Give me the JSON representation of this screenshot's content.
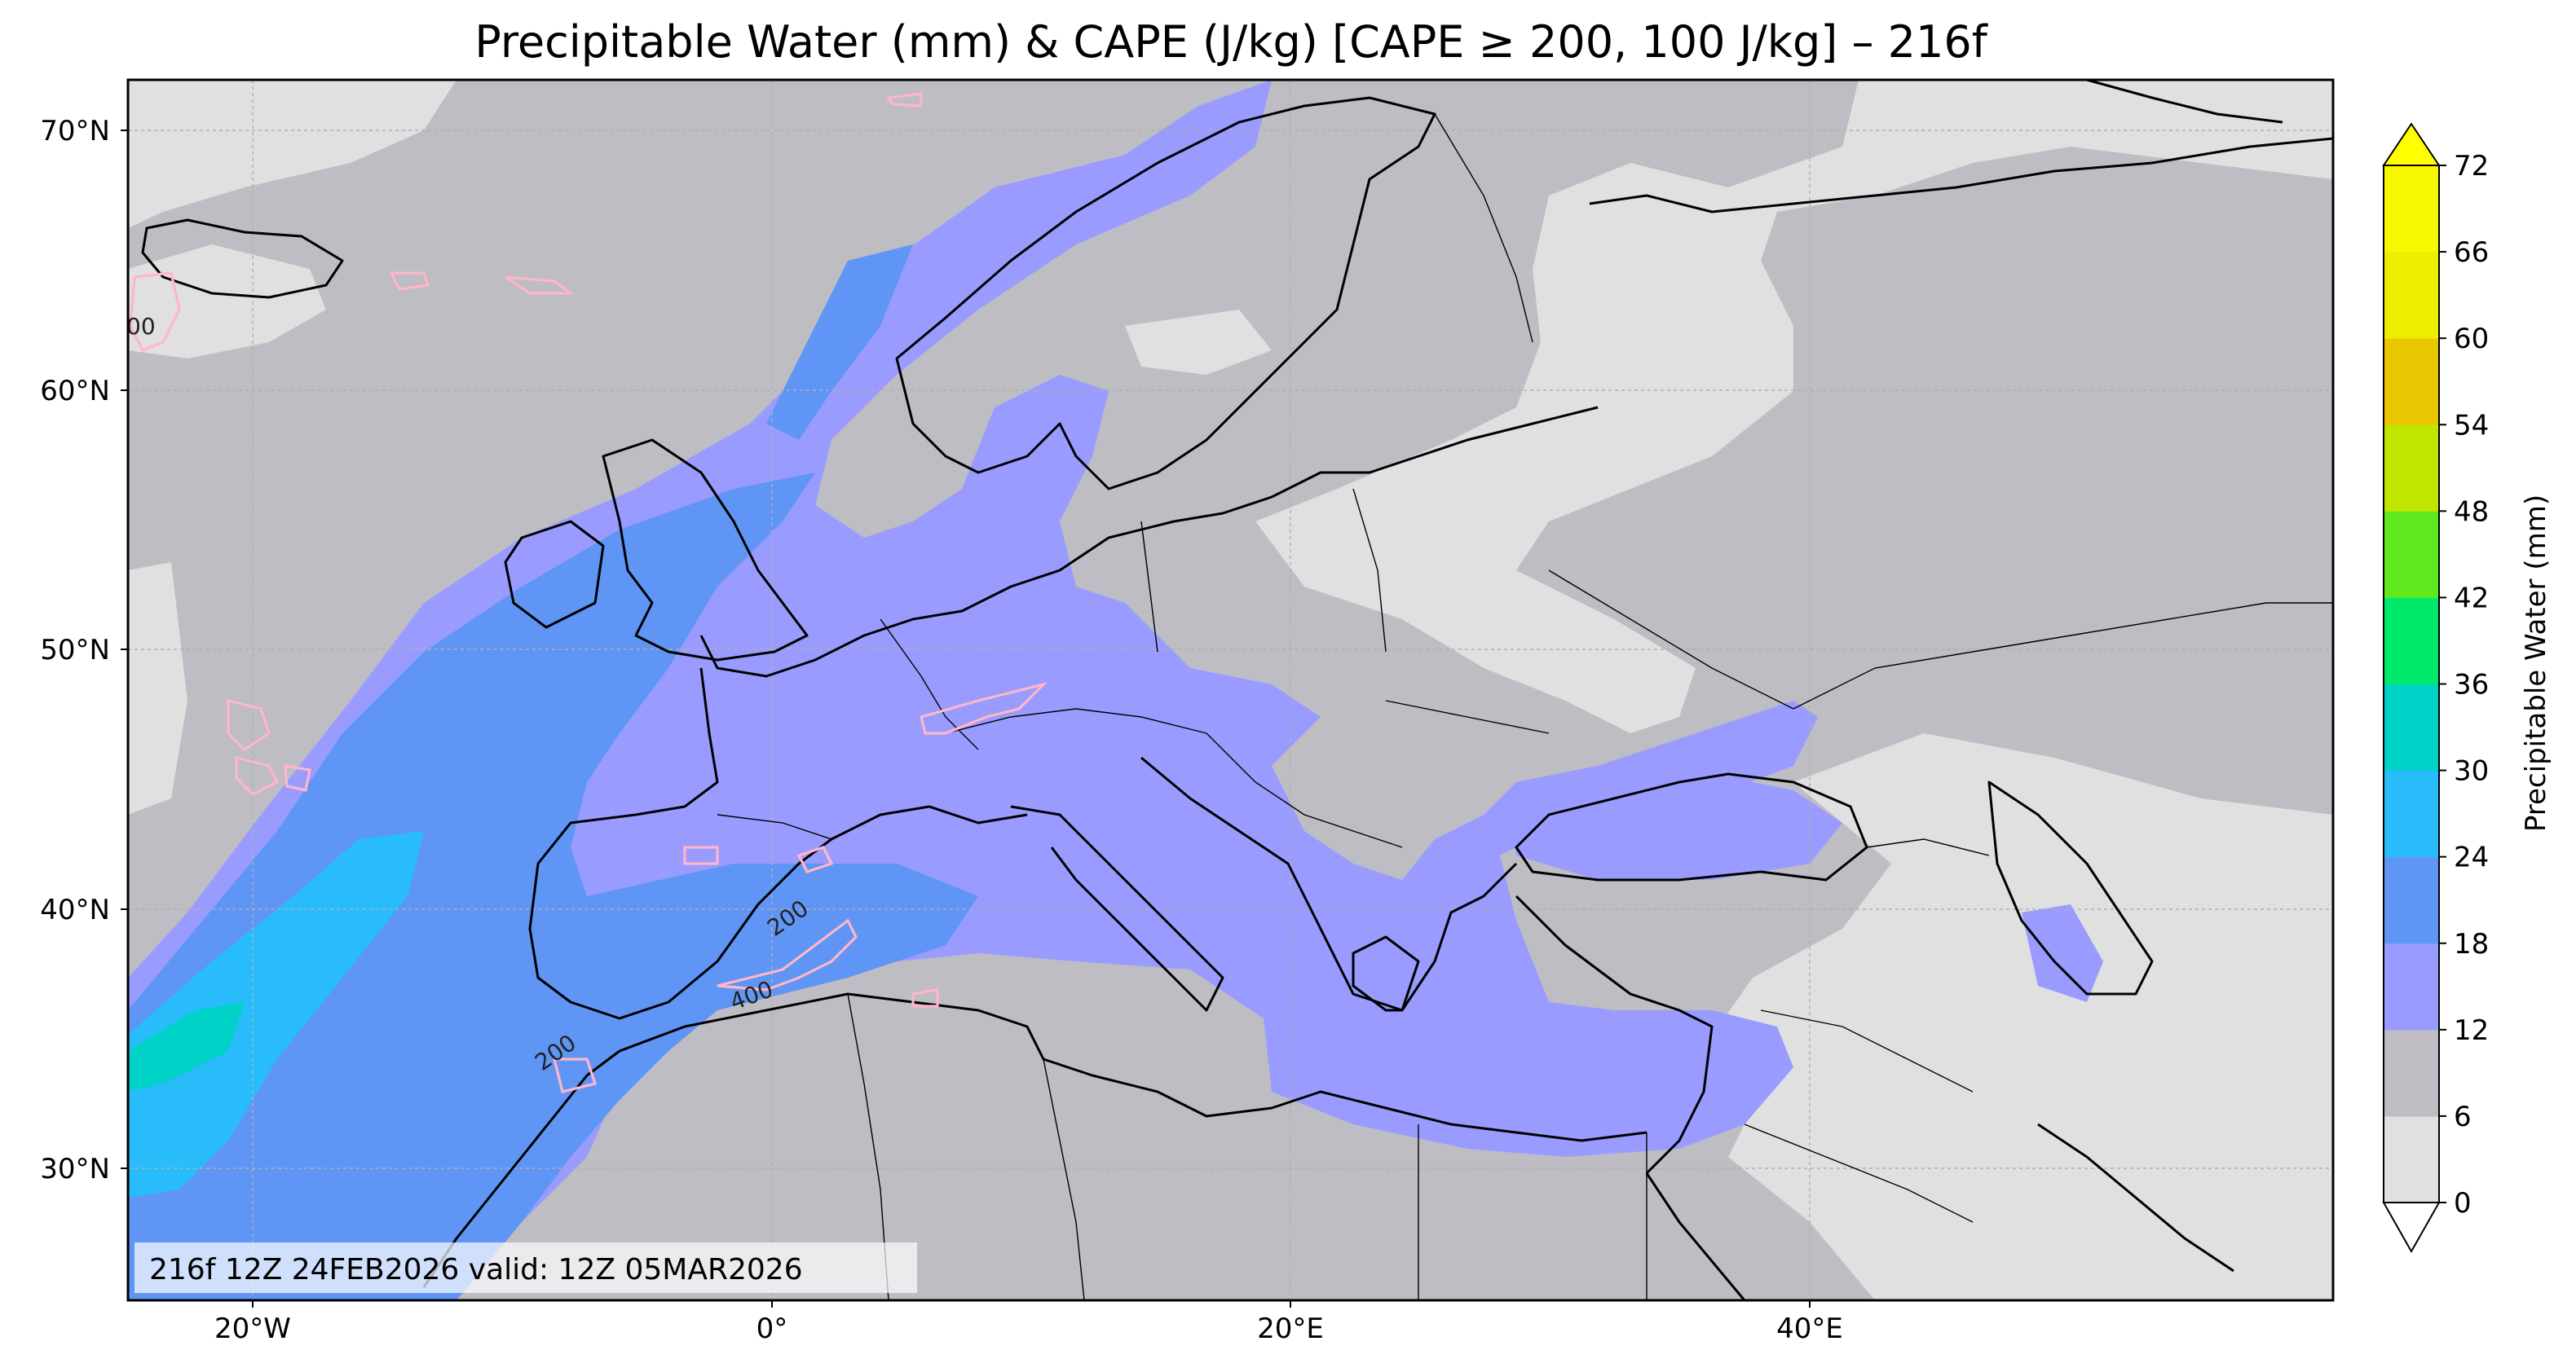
{
  "title": "Precipitable Water (mm) & CAPE (J/kg) [CAPE ≥ 200, 100 J/kg] – 216f",
  "stamp": "216f 12Z 24FEB2026 valid: 12Z 05MAR2026",
  "lat_ticks": [
    "70°N",
    "60°N",
    "50°N",
    "40°N",
    "30°N"
  ],
  "lon_ticks": [
    "20°W",
    "0°",
    "20°E",
    "40°E"
  ],
  "colorbar": {
    "label": "Precipitable Water (mm)",
    "ticks": [
      "0",
      "6",
      "12",
      "18",
      "24",
      "30",
      "36",
      "42",
      "48",
      "54",
      "60",
      "66",
      "72"
    ],
    "colors": [
      "#e0e0e0",
      "#bdbdc3",
      "#999bff",
      "#5f95f5",
      "#28bdfa",
      "#00d2c8",
      "#00e96a",
      "#5fe81e",
      "#bfe600",
      "#e8c700",
      "#eded00",
      "#f7f700"
    ],
    "under_color": "#ffffff",
    "over_color": "#ffff00"
  },
  "cape_labels": [
    "200",
    "200",
    "400",
    "200",
    "00"
  ],
  "chart_data": {
    "type": "heatmap",
    "title": "Precipitable Water (mm) & CAPE (J/kg) [CAPE ≥ 200, 100 J/kg] – 216f",
    "xlabel": "",
    "ylabel": "",
    "lon_range": [
      -25,
      60
    ],
    "lat_range": [
      25,
      72
    ],
    "x_ticks": [
      "20°W",
      "0°",
      "20°E",
      "40°E"
    ],
    "y_ticks": [
      "70°N",
      "60°N",
      "50°N",
      "40°N",
      "30°N"
    ],
    "colorbar_levels_mm": [
      0,
      6,
      12,
      18,
      24,
      30,
      36,
      42,
      48,
      54,
      60,
      66,
      72
    ],
    "colorbar_label": "Precipitable Water (mm)",
    "cape_contour_levels_jkg": [
      200,
      400
    ],
    "grid": true
  }
}
